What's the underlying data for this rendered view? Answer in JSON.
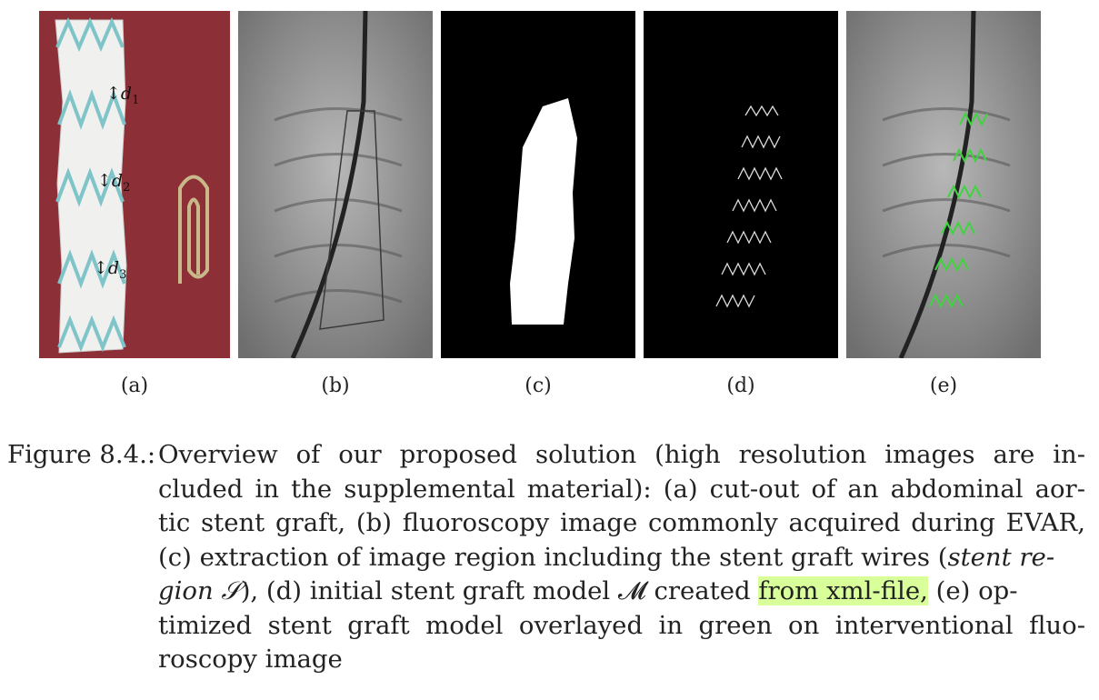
{
  "figure": {
    "sublabels": [
      "(a)",
      "(b)",
      "(c)",
      "(d)",
      "(e)"
    ],
    "dimension_labels": [
      {
        "symbol": "↕d",
        "sub": "1"
      },
      {
        "symbol": "↕d",
        "sub": "2"
      },
      {
        "symbol": "↕d",
        "sub": "3"
      }
    ],
    "colors": {
      "photo_background": "#8c2f36",
      "overlay_green": "#3fd43f",
      "highlight": "#d9ff9a"
    }
  },
  "caption": {
    "prefix": "Figure 8.4.:",
    "line1": "Overview of our proposed solution (high resolution images are in-",
    "line2": "cluded in the supplemental material): (a) cut-out of an abdominal aor-",
    "line3": "tic stent graft, (b) fluoroscopy image commonly acquired during EVAR,",
    "line4a": "(c) extraction of image region including the stent graft wires (",
    "line4b": "stent re-",
    "line5a": "gion 𝒮",
    "line5b": "), (d) initial stent graft model 𝓜 created ",
    "line5_highlight": "from xml-file,",
    "line5c": " (e) op-",
    "line6": "timized stent graft model overlayed in green on interventional fluo-",
    "line7": "roscopy image"
  }
}
